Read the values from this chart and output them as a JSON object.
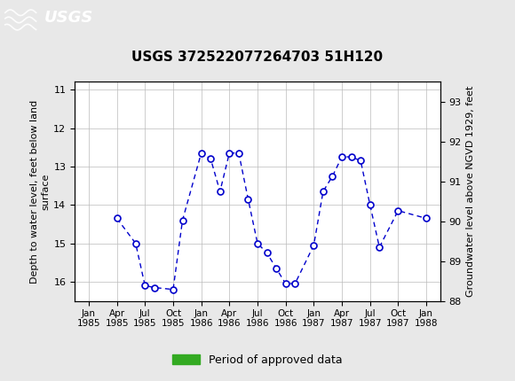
{
  "title": "USGS 372522077264703 51H120",
  "ylabel_left": "Depth to water level, feet below land\nsurface",
  "ylabel_right": "Groundwater level above NGVD 1929, feet",
  "ylim_left": [
    16.5,
    10.8
  ],
  "ylim_right": [
    88.0,
    93.5
  ],
  "yticks_left": [
    11.0,
    12.0,
    13.0,
    14.0,
    15.0,
    16.0
  ],
  "yticks_right": [
    88.0,
    89.0,
    90.0,
    91.0,
    92.0,
    93.0
  ],
  "header_color": "#1a7040",
  "line_color": "#0000cc",
  "marker_color": "#0000cc",
  "background_color": "#e8e8e8",
  "plot_bg_color": "#ffffff",
  "green_bar_color": "#33aa22",
  "data_points": [
    {
      "month_idx": 3,
      "y": 14.35
    },
    {
      "month_idx": 5,
      "y": 15.0
    },
    {
      "month_idx": 6,
      "y": 16.1
    },
    {
      "month_idx": 7,
      "y": 16.15
    },
    {
      "month_idx": 9,
      "y": 16.2
    },
    {
      "month_idx": 10,
      "y": 14.4
    },
    {
      "month_idx": 12,
      "y": 12.65
    },
    {
      "month_idx": 13,
      "y": 12.8
    },
    {
      "month_idx": 14,
      "y": 13.65
    },
    {
      "month_idx": 15,
      "y": 12.65
    },
    {
      "month_idx": 16,
      "y": 12.65
    },
    {
      "month_idx": 17,
      "y": 13.85
    },
    {
      "month_idx": 18,
      "y": 15.0
    },
    {
      "month_idx": 19,
      "y": 15.25
    },
    {
      "month_idx": 20,
      "y": 15.65
    },
    {
      "month_idx": 21,
      "y": 16.05
    },
    {
      "month_idx": 22,
      "y": 16.05
    },
    {
      "month_idx": 24,
      "y": 15.05
    },
    {
      "month_idx": 25,
      "y": 13.65
    },
    {
      "month_idx": 26,
      "y": 13.25
    },
    {
      "month_idx": 27,
      "y": 12.75
    },
    {
      "month_idx": 28,
      "y": 12.75
    },
    {
      "month_idx": 29,
      "y": 12.85
    },
    {
      "month_idx": 30,
      "y": 14.0
    },
    {
      "month_idx": 31,
      "y": 15.1
    },
    {
      "month_idx": 33,
      "y": 14.15
    },
    {
      "month_idx": 36,
      "y": 14.35
    }
  ],
  "xtick_labels": [
    "Jan\n1985",
    "Apr\n1985",
    "Jul\n1985",
    "Oct\n1985",
    "Jan\n1986",
    "Apr\n1986",
    "Jul\n1986",
    "Oct\n1986",
    "Jan\n1987",
    "Apr\n1987",
    "Jul\n1987",
    "Oct\n1987",
    "Jan\n1988"
  ],
  "xtick_month_offsets": [
    0,
    3,
    6,
    9,
    12,
    15,
    18,
    21,
    24,
    27,
    30,
    33,
    36
  ]
}
